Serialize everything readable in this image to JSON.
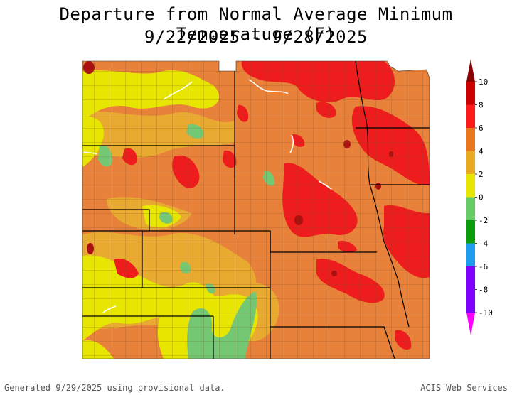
{
  "title": {
    "line1": "Departure from Normal Average Minimum Temperature (F)",
    "line2": "9/22/2025 - 9/28/2025"
  },
  "legend": {
    "ticks": [
      "10",
      "8",
      "6",
      "4",
      "2",
      "0",
      "-2",
      "-4",
      "-6",
      "-8",
      "-10"
    ],
    "colors": [
      "#8b0000",
      "#cc0000",
      "#ff1a1a",
      "#e8771e",
      "#e8aa1e",
      "#e6e600",
      "#66cc66",
      "#0c9c0c",
      "#1e9cf0",
      "#8000ff",
      "#ff00ff"
    ]
  },
  "map": {
    "palette": {
      "neg2_0": "#74c874",
      "zero_2": "#e6e600",
      "two_4": "#e8aa30",
      "four_6": "#e8823a",
      "six_8": "#ee1c1c",
      "eight_10": "#aa1010",
      "border": "#000000",
      "county": "#7a4a20",
      "water": "#ffffff"
    }
  },
  "footer": {
    "left": "Generated 9/29/2025 using provisional data.",
    "right": "ACIS Web Services"
  }
}
